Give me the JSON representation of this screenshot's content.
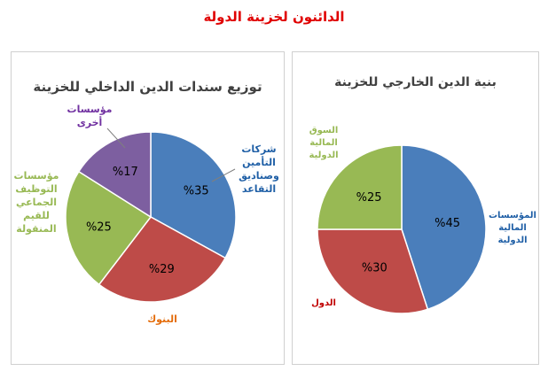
{
  "main_title": "الدائنون لخزينة الدولة",
  "chart_data": [
    {
      "type": "pie",
      "title": "توزيع سندات الدين الداخلي للخزينة",
      "categories": [
        "شركات التأمين وصناديق التقاعد",
        "البنوك",
        "مؤسسات التوظيف الجماعي للقيم المنقولة",
        "مؤسسات أخرى"
      ],
      "label_lines": [
        [
          "شركات",
          "التأمين",
          "وصناديق",
          "التقاعد"
        ],
        [
          "البنوك"
        ],
        [
          "مؤسسات",
          "التوظيف",
          "الجماعي",
          "للقيم",
          "المنقولة"
        ],
        [
          "مؤسسات",
          "أخرى"
        ]
      ],
      "values": [
        35,
        29,
        25,
        17
      ],
      "value_labels": [
        "%35",
        "%29",
        "%25",
        "%17"
      ],
      "colors": [
        "#4a7ebb",
        "#be4b48",
        "#98b954",
        "#7d5fa0"
      ],
      "label_colors": [
        "#1f5fa6",
        "#e46c0a",
        "#98b954",
        "#7030a0"
      ]
    },
    {
      "type": "pie",
      "title": "بنية الدين الخارجي للخزينة",
      "categories": [
        "المؤسسات المالية الدولية",
        "الدول",
        "السوق المالية الدولية"
      ],
      "label_lines": [
        [
          "المؤسسات",
          "المالية",
          "الدولية"
        ],
        [
          "الدول"
        ],
        [
          "السوق",
          "المالية",
          "الدولية"
        ]
      ],
      "values": [
        45,
        30,
        25
      ],
      "value_labels": [
        "%45",
        "%30",
        "%25"
      ],
      "colors": [
        "#4a7ebb",
        "#be4b48",
        "#98b954"
      ],
      "label_colors": [
        "#1f5fa6",
        "#c00000",
        "#98b954"
      ]
    }
  ]
}
